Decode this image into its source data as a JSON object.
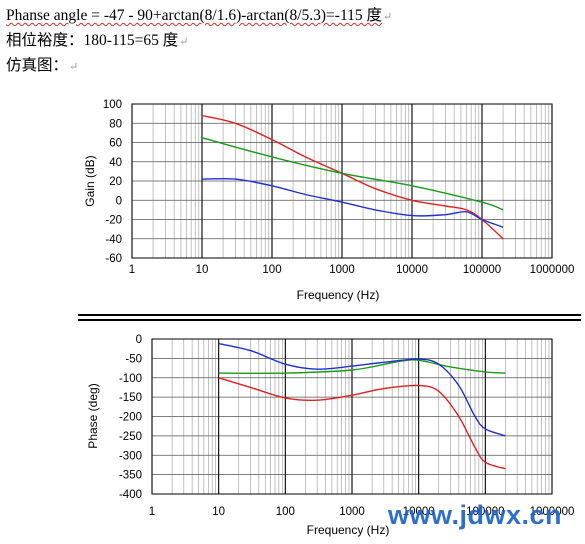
{
  "text_lines": {
    "line1": "Phanse angle = -47 - 90+arctan(8/1.6)-arctan(8/5.3)=-115 度",
    "line2": "相位裕度：180-115=65 度",
    "line3": "仿真图：",
    "paragraph_mark": "↵"
  },
  "watermark": "www.jdwx.cn",
  "chart_data": [
    {
      "type": "line",
      "ylabel": "Gain (dB)",
      "xlabel": "Frequency (Hz)",
      "xscale": "log",
      "xlim": [
        1,
        1000000
      ],
      "ylim": [
        -60,
        100
      ],
      "xticks": [
        "1",
        "10",
        "100",
        "1000",
        "10000",
        "100000",
        "1000000"
      ],
      "yticks": [
        "100",
        "80",
        "60",
        "40",
        "20",
        "0",
        "-20",
        "-40",
        "-60"
      ],
      "grid": true,
      "series": [
        {
          "color": "#e02020",
          "x": [
            10,
            30,
            100,
            300,
            1000,
            3000,
            10000,
            30000,
            60000,
            100000,
            200000
          ],
          "y": [
            88,
            80,
            63,
            45,
            28,
            12,
            0,
            -6,
            -10,
            -20,
            -40
          ]
        },
        {
          "color": "#1a9a1a",
          "x": [
            10,
            100,
            1000,
            10000,
            100000,
            200000
          ],
          "y": [
            65,
            45,
            28,
            15,
            -2,
            -10
          ]
        },
        {
          "color": "#2030d0",
          "x": [
            10,
            30,
            100,
            300,
            1000,
            3000,
            10000,
            30000,
            60000,
            100000,
            200000
          ],
          "y": [
            22,
            22,
            15,
            6,
            -2,
            -10,
            -16,
            -15,
            -12,
            -20,
            -28
          ]
        }
      ]
    },
    {
      "type": "line",
      "ylabel": "Phase (deg)",
      "xlabel": "Frequency (Hz)",
      "xscale": "log",
      "xlim": [
        1,
        1000000
      ],
      "ylim": [
        -400,
        0
      ],
      "xticks": [
        "1",
        "10",
        "100",
        "1000",
        "10000",
        "100000",
        "1000000"
      ],
      "yticks": [
        "0",
        "-50",
        "-100",
        "-150",
        "-200",
        "-250",
        "-300",
        "-350",
        "-400"
      ],
      "grid": true,
      "series": [
        {
          "color": "#1a9a1a",
          "x": [
            10,
            100,
            1000,
            5000,
            10000,
            30000,
            100000,
            200000
          ],
          "y": [
            -88,
            -88,
            -80,
            -58,
            -55,
            -72,
            -85,
            -88
          ]
        },
        {
          "color": "#2030d0",
          "x": [
            10,
            30,
            100,
            300,
            1000,
            3000,
            10000,
            20000,
            40000,
            70000,
            100000,
            200000
          ],
          "y": [
            -12,
            -30,
            -65,
            -78,
            -70,
            -60,
            -52,
            -65,
            -120,
            -200,
            -232,
            -250
          ]
        },
        {
          "color": "#e02020",
          "x": [
            10,
            30,
            100,
            300,
            1000,
            3000,
            10000,
            20000,
            40000,
            70000,
            100000,
            200000
          ],
          "y": [
            -100,
            -125,
            -152,
            -158,
            -145,
            -128,
            -120,
            -135,
            -200,
            -280,
            -318,
            -335
          ]
        }
      ]
    }
  ]
}
